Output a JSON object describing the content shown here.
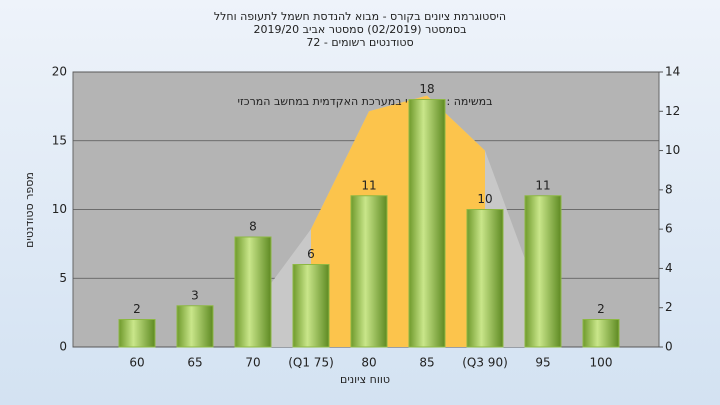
{
  "chart_data": {
    "type": "bar",
    "title": "היסטוגרמת ציונים בקורס - מבוא להנדסת חשמל לתעופה וחלל",
    "subtitle": "בסמסטר (02/2019) סמסטר אביב 2019/20",
    "subtitle2": "סטודנטים רשומים - 72",
    "annotation": "במשימה : ציון סופי במערכת האקדמית במחשב המרכזי",
    "xlabel": "טווח ציונים",
    "ylabel": "מספר סטודנטים",
    "categories": [
      "60",
      "65",
      "70",
      "(Q1 75)",
      "80",
      "85",
      "(Q3 90)",
      "95",
      "100"
    ],
    "values": [
      2,
      3,
      8,
      6,
      11,
      18,
      10,
      11,
      2
    ],
    "color": "#8db843",
    "areas": [
      {
        "color": "#c8c8c8",
        "axis": "y2",
        "values": [
          null,
          null,
          2,
          6,
          12,
          12.8,
          10,
          2,
          null
        ]
      },
      {
        "color": "#fcc44c",
        "axis": "y2",
        "values": [
          null,
          null,
          null,
          6,
          12,
          12.8,
          10,
          null,
          null
        ]
      }
    ],
    "ylim": [
      0,
      20
    ],
    "yticks": [
      0,
      5,
      10,
      15,
      20
    ],
    "y2lim": [
      0,
      14
    ],
    "y2ticks": [
      0,
      2,
      4,
      6,
      8,
      10,
      12,
      14
    ],
    "grid": true
  }
}
